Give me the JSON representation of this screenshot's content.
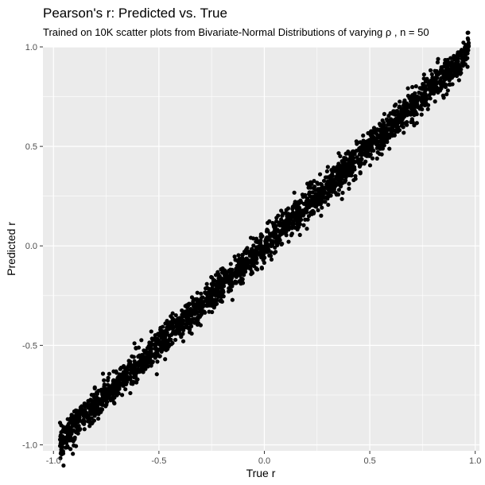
{
  "chart_data": {
    "type": "scatter",
    "title": "Pearson's r: Predicted vs. True",
    "subtitle": "Trained on 10K scatter plots from Bivariate-Normal Distributions of varying  ρ , n = 50",
    "xlabel": "True r",
    "ylabel": "Predicted r",
    "xlim": [
      -1.05,
      1.02
    ],
    "ylim": [
      -1.03,
      1.0
    ],
    "x_ticks": [
      -1.0,
      -0.5,
      0.0,
      0.5,
      1.0
    ],
    "x_tick_labels": [
      "-1.0",
      "-0.5",
      "0.0",
      "0.5",
      "1.0"
    ],
    "y_ticks": [
      -1.0,
      -0.5,
      0.0,
      0.5,
      1.0
    ],
    "y_tick_labels": [
      "-1.0",
      "-0.5",
      "0.0",
      "0.5",
      "1.0"
    ],
    "grid": true,
    "panel_background": "#ebebeb",
    "grid_color": "#ffffff",
    "point_color": "#000000",
    "points": {
      "count": 10000,
      "x": [
        -0.97,
        -0.95,
        -0.92,
        -0.9,
        -0.88,
        -0.85,
        -0.82,
        -0.8,
        -0.77,
        -0.75,
        -0.72,
        -0.7,
        -0.67,
        -0.65,
        -0.62,
        -0.6,
        -0.57,
        -0.55,
        -0.52,
        -0.5,
        -0.47,
        -0.45,
        -0.42,
        -0.4,
        -0.37,
        -0.35,
        -0.32,
        -0.3,
        -0.27,
        -0.25,
        -0.22,
        -0.2,
        -0.17,
        -0.15,
        -0.12,
        -0.1,
        -0.07,
        -0.05,
        -0.02,
        0.0,
        0.02,
        0.05,
        0.07,
        0.1,
        0.12,
        0.15,
        0.17,
        0.2,
        0.22,
        0.25,
        0.27,
        0.3,
        0.32,
        0.35,
        0.37,
        0.4,
        0.42,
        0.45,
        0.47,
        0.5,
        0.52,
        0.55,
        0.57,
        0.6,
        0.62,
        0.65,
        0.67,
        0.7,
        0.72,
        0.75,
        0.77,
        0.8,
        0.82,
        0.85,
        0.87,
        0.9,
        0.92,
        0.95,
        0.97
      ],
      "y": [
        -1.0,
        -0.96,
        -0.93,
        -0.9,
        -0.88,
        -0.85,
        -0.82,
        -0.8,
        -0.77,
        -0.75,
        -0.72,
        -0.7,
        -0.67,
        -0.65,
        -0.62,
        -0.6,
        -0.57,
        -0.55,
        -0.52,
        -0.5,
        -0.47,
        -0.45,
        -0.42,
        -0.4,
        -0.37,
        -0.35,
        -0.32,
        -0.3,
        -0.27,
        -0.25,
        -0.22,
        -0.2,
        -0.17,
        -0.15,
        -0.12,
        -0.1,
        -0.07,
        -0.05,
        -0.02,
        0.0,
        0.02,
        0.05,
        0.07,
        0.1,
        0.12,
        0.15,
        0.17,
        0.2,
        0.22,
        0.25,
        0.27,
        0.3,
        0.32,
        0.35,
        0.37,
        0.4,
        0.42,
        0.45,
        0.47,
        0.5,
        0.52,
        0.55,
        0.57,
        0.6,
        0.62,
        0.65,
        0.67,
        0.7,
        0.72,
        0.75,
        0.77,
        0.8,
        0.82,
        0.85,
        0.87,
        0.9,
        0.92,
        0.95,
        1.0
      ],
      "residual_sd": 0.04
    }
  }
}
